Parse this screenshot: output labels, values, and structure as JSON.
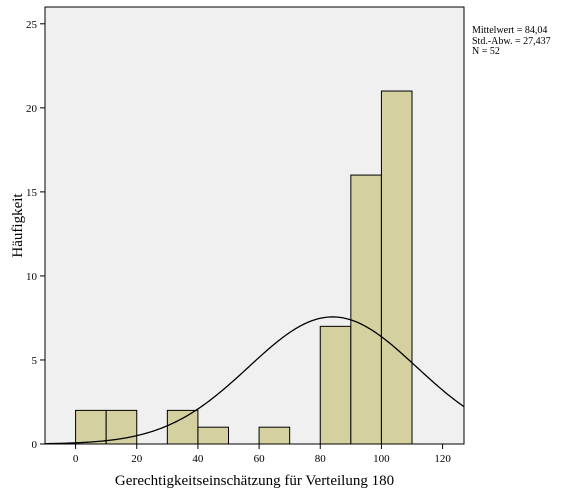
{
  "chart_data": {
    "type": "bar",
    "xlabel": "Gerechtigkeitseinschätzung für Verteilung 180",
    "ylabel": "Häufigkeit",
    "xlim": [
      -10,
      127
    ],
    "ylim": [
      0,
      26
    ],
    "x_ticks": [
      0,
      20,
      40,
      60,
      80,
      100,
      120
    ],
    "y_ticks": [
      0,
      5,
      10,
      15,
      20,
      25
    ],
    "bin_width": 10,
    "bins": [
      {
        "start": 0,
        "end": 10,
        "count": 2
      },
      {
        "start": 10,
        "end": 20,
        "count": 2
      },
      {
        "start": 30,
        "end": 40,
        "count": 2
      },
      {
        "start": 40,
        "end": 50,
        "count": 1
      },
      {
        "start": 60,
        "end": 70,
        "count": 1
      },
      {
        "start": 80,
        "end": 90,
        "count": 7
      },
      {
        "start": 90,
        "end": 100,
        "count": 16
      },
      {
        "start": 100,
        "end": 110,
        "count": 21
      }
    ],
    "normal_curve": {
      "mean": 84.04,
      "sd": 27.437,
      "n": 52
    },
    "bar_color": "#d4d0a0",
    "bar_edge_color": "#000000",
    "plot_background": "#f0f0f0",
    "grid": false
  },
  "stats": {
    "mean_label": "Mittelwert = 84,04",
    "sd_label": "Std.-Abw. = 27,437",
    "n_label": "N = 52"
  }
}
